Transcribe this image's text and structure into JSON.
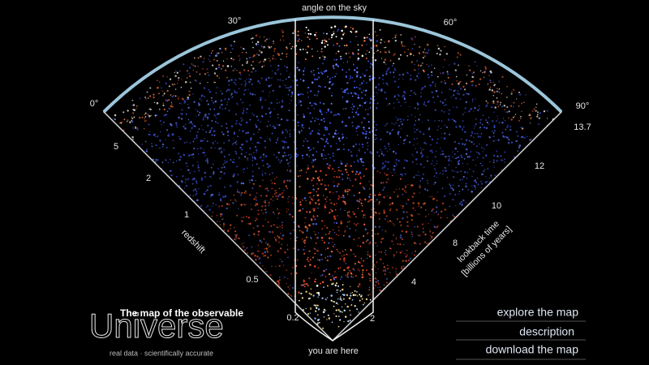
{
  "title": "angle on the sky",
  "angle_ticks": [
    "0°",
    "30°",
    "60°",
    "90°"
  ],
  "redshift": {
    "label": "redshift",
    "ticks": [
      5,
      2,
      1,
      0.5,
      0.2
    ]
  },
  "lookback": {
    "label_lines": [
      "lookback time",
      "[billions of years]"
    ],
    "ticks": [
      13.7,
      12,
      10,
      8,
      4,
      2
    ]
  },
  "origin_label": "you are here",
  "logo": {
    "tagline": "The map of the observable",
    "wordmark": "Universe",
    "subtitle": "real data · scientifically accurate"
  },
  "menu": [
    "explore the map",
    "description",
    "download the map"
  ]
}
